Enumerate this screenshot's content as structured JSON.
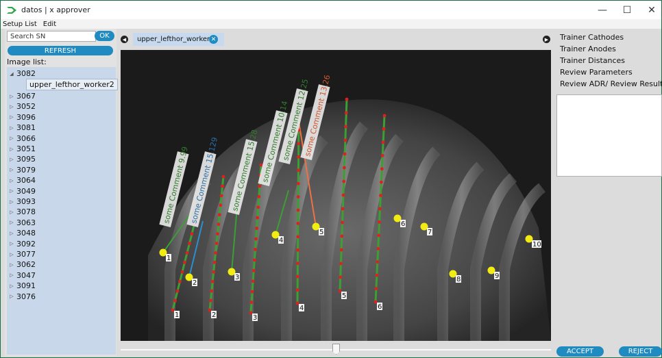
{
  "window": {
    "title": "datos | x approver",
    "minimize": "—",
    "maximize": "☐",
    "close": "✕"
  },
  "menu": [
    "Setup List",
    "Edit"
  ],
  "search": {
    "value": "",
    "placeholder": "Search SN",
    "ok_label": "OK",
    "refresh_label": "REFRESH"
  },
  "image_list": {
    "label": "Image list:",
    "expanded": {
      "id": "3082",
      "child": "upper_lefthor_worker2"
    },
    "items": [
      "3067",
      "3052",
      "3096",
      "3081",
      "3066",
      "3051",
      "3095",
      "3079",
      "3064",
      "3049",
      "3093",
      "3078",
      "3063",
      "3048",
      "3092",
      "3077",
      "3062",
      "3047",
      "3091",
      "3076"
    ]
  },
  "tab": {
    "label": "upper_lefthor_worker2"
  },
  "right_menu": [
    "Trainer Cathodes",
    "Trainer Anodes",
    "Trainer Distances",
    "Review Parameters",
    "Review ADR/ Review Results"
  ],
  "buttons": {
    "accept": "ACCEPT",
    "reject": "REJECT"
  },
  "image": {
    "tops": [
      "1",
      "2",
      "3",
      "4",
      "5",
      "6",
      "7",
      "8",
      "9",
      "10"
    ],
    "bottoms": [
      "1",
      "2",
      "3",
      "4",
      "5",
      "6"
    ],
    "comments": [
      "some Comment 9.99",
      "some Comment 15.129",
      "some Comment 15.28",
      "some Comment 10.14",
      "some Comment 12.25",
      "some Comment 13.26"
    ]
  },
  "colors": {
    "accent": "#1f8bc1",
    "point_red": "#e02020",
    "marker_yellow": "#f2ec12",
    "line_green": "#3c9e34",
    "line_blue": "#2b8fcf",
    "line_orange": "#ee7344"
  }
}
